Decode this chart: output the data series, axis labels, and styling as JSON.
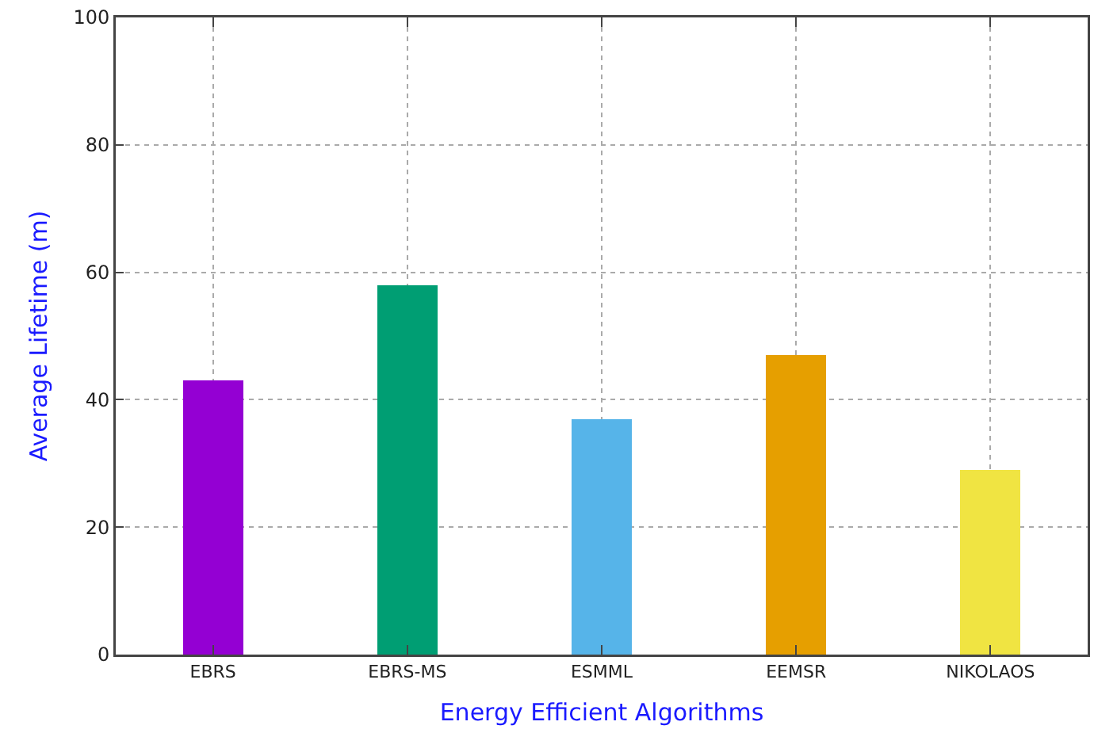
{
  "chart_data": {
    "type": "bar",
    "categories": [
      "EBRS",
      "EBRS-MS",
      "ESMML",
      "EEMSR",
      "NIKOLAOS"
    ],
    "values": [
      43,
      58,
      37,
      47,
      29
    ],
    "colors": [
      "#9400d3",
      "#009e73",
      "#56b4e9",
      "#e69f00",
      "#f0e442"
    ],
    "xlabel": "Energy Efficient Algorithms",
    "ylabel": "Average Lifetime (m)",
    "ylim": [
      0,
      100
    ],
    "yticks": [
      0,
      20,
      40,
      60,
      80,
      100
    ],
    "grid": true
  }
}
